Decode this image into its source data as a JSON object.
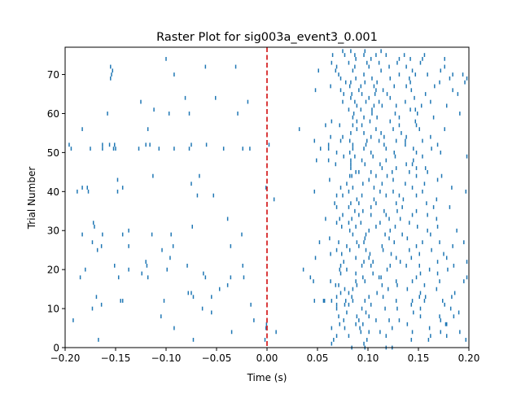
{
  "chart_data": {
    "type": "scatter",
    "marker": "vertical-tick",
    "title": "Raster Plot for sig003a_event3_0.001",
    "xlabel": "Time (s)",
    "ylabel": "Trial Number",
    "xlim": [
      -0.2,
      0.2
    ],
    "ylim": [
      0,
      77
    ],
    "xticks": [
      "−0.20",
      "−0.15",
      "−0.10",
      "−0.05",
      "0.00",
      "0.05",
      "0.10",
      "0.15",
      "0.20"
    ],
    "yticks": [
      "0",
      "10",
      "20",
      "30",
      "40",
      "50",
      "60",
      "70"
    ],
    "grid": false,
    "legend": "none",
    "colors": {
      "spikes": "#1f77b4",
      "event_line": "#d62728"
    },
    "event_line": {
      "x": 0.0,
      "style": "dashed"
    },
    "trials": [
      {
        "trial": 0,
        "spikes": [
          0.084,
          0.097,
          0.118,
          0.124
        ]
      },
      {
        "trial": 1,
        "spikes": [
          0.064,
          0.096
        ]
      },
      {
        "trial": 2,
        "spikes": [
          -0.167,
          -0.073,
          -0.002,
          0.066,
          0.099,
          0.143,
          0.16,
          0.197
        ]
      },
      {
        "trial": 3,
        "spikes": [
          0.069,
          0.081,
          0.118,
          0.162,
          0.178
        ]
      },
      {
        "trial": 4,
        "spikes": [
          -0.035,
          0.009,
          0.093,
          0.101,
          0.112,
          0.144,
          0.172,
          0.191
        ]
      },
      {
        "trial": 5,
        "spikes": [
          -0.092,
          -0.001,
          0.064,
          0.077,
          0.092,
          0.124,
          0.161
        ]
      },
      {
        "trial": 6,
        "spikes": [
          -0.0005,
          0.072,
          0.088,
          0.095,
          0.139,
          0.177,
          0.178
        ]
      },
      {
        "trial": 7,
        "spikes": [
          -0.192,
          -0.013,
          0.076,
          0.091,
          0.108,
          0.121,
          0.131,
          0.172
        ]
      },
      {
        "trial": 8,
        "spikes": [
          -0.105,
          0.071,
          0.089,
          0.101,
          0.152,
          0.171,
          0.185
        ]
      },
      {
        "trial": 9,
        "spikes": [
          -0.055,
          0.079,
          0.098,
          0.145,
          0.19
        ]
      },
      {
        "trial": 10,
        "spikes": [
          -0.173,
          -0.064,
          0.069,
          0.094,
          0.117,
          0.129,
          0.152,
          0.182
        ]
      },
      {
        "trial": 11,
        "spikes": [
          -0.164,
          -0.016,
          0.069,
          0.077,
          0.081,
          0.103,
          0.143,
          0.176
        ]
      },
      {
        "trial": 12,
        "spikes": [
          -0.145,
          -0.143,
          -0.102,
          0.047,
          0.056,
          0.057,
          0.064,
          0.078,
          0.085,
          0.097,
          0.128,
          0.144,
          0.156,
          0.174
        ]
      },
      {
        "trial": 13,
        "spikes": [
          -0.169,
          -0.055,
          -0.073,
          0.069,
          0.084,
          0.101,
          0.115,
          0.151,
          0.157,
          0.183
        ]
      },
      {
        "trial": 14,
        "spikes": [
          -0.078,
          -0.075,
          0.073,
          0.081,
          0.109,
          0.152,
          0.186
        ]
      },
      {
        "trial": 15,
        "spikes": [
          -0.047,
          0.077,
          0.085,
          0.12,
          0.139,
          0.168
        ]
      },
      {
        "trial": 16,
        "spikes": [
          -0.039,
          0.068,
          0.071,
          0.089,
          0.114,
          0.129,
          0.156
        ]
      },
      {
        "trial": 17,
        "spikes": [
          0.046,
          0.063,
          0.088,
          0.097,
          0.128,
          0.144,
          0.171,
          0.195
        ]
      },
      {
        "trial": 18,
        "spikes": [
          -0.185,
          -0.147,
          -0.118,
          -0.061,
          -0.036,
          -0.023,
          0.043,
          0.095,
          0.111,
          0.113,
          0.148,
          0.198
        ]
      },
      {
        "trial": 19,
        "spikes": [
          -0.124,
          -0.063,
          0.073,
          0.088,
          0.105,
          0.152,
          0.169
        ]
      },
      {
        "trial": 20,
        "spikes": [
          -0.18,
          -0.137,
          -0.099,
          0.036,
          0.072,
          0.079,
          0.119,
          0.161,
          0.179
        ]
      },
      {
        "trial": 21,
        "spikes": [
          -0.151,
          -0.119,
          -0.079,
          -0.024,
          0.073,
          0.094,
          0.103,
          0.122,
          0.138,
          0.151,
          0.185
        ]
      },
      {
        "trial": 22,
        "spikes": [
          -0.12,
          0.076,
          0.096,
          0.105,
          0.132,
          0.169,
          0.198
        ]
      },
      {
        "trial": 23,
        "spikes": [
          -0.096,
          0.048,
          0.088,
          0.101,
          0.128,
          0.143,
          0.178
        ]
      },
      {
        "trial": 24,
        "spikes": [
          0.063,
          0.074,
          0.102,
          0.123,
          0.151,
          0.175
        ]
      },
      {
        "trial": 25,
        "spikes": [
          -0.168,
          -0.104,
          0.069,
          0.082,
          0.098,
          0.115,
          0.141,
          0.163
        ]
      },
      {
        "trial": 26,
        "spikes": [
          -0.164,
          -0.137,
          -0.093,
          -0.036,
          0.079,
          0.091,
          0.114,
          0.148,
          0.184
        ]
      },
      {
        "trial": 27,
        "spikes": [
          -0.173,
          0.052,
          0.071,
          0.089,
          0.096,
          0.126,
          0.154,
          0.171,
          0.195
        ]
      },
      {
        "trial": 28,
        "spikes": [
          0.062,
          0.097,
          0.121,
          0.139
        ]
      },
      {
        "trial": 29,
        "spikes": [
          -0.183,
          -0.163,
          -0.143,
          -0.114,
          -0.095,
          -0.025,
          0.085,
          0.098,
          0.117,
          0.134,
          0.162
        ]
      },
      {
        "trial": 30,
        "spikes": [
          -0.137,
          0.082,
          0.101,
          0.122,
          0.159,
          0.188
        ]
      },
      {
        "trial": 31,
        "spikes": [
          -0.171,
          -0.074,
          0.074,
          0.088,
          0.108,
          0.127,
          0.149,
          0.169
        ]
      },
      {
        "trial": 32,
        "spikes": [
          -0.172,
          0.069,
          0.081,
          0.093,
          0.112,
          0.141
        ]
      },
      {
        "trial": 33,
        "spikes": [
          -0.039,
          0.058,
          0.072,
          0.084,
          0.121,
          0.132,
          0.168
        ]
      },
      {
        "trial": 34,
        "spikes": [
          0.075,
          0.091,
          0.103,
          0.118,
          0.144,
          0.159
        ]
      },
      {
        "trial": 35,
        "spikes": [
          0.087,
          0.095,
          0.116,
          0.129,
          0.148
        ]
      },
      {
        "trial": 36,
        "spikes": [
          0.069,
          0.081,
          0.103,
          0.134,
          0.165,
          0.181
        ]
      },
      {
        "trial": 37,
        "spikes": [
          0.067,
          0.083,
          0.091,
          0.108,
          0.128,
          0.158
        ]
      },
      {
        "trial": 38,
        "spikes": [
          0.007,
          0.089,
          0.106,
          0.135,
          0.168
        ]
      },
      {
        "trial": 39,
        "spikes": [
          -0.069,
          -0.053,
          0.069,
          0.075,
          0.094,
          0.118,
          0.131,
          0.148
        ]
      },
      {
        "trial": 40,
        "spikes": [
          -0.188,
          -0.177,
          -0.148,
          0.047,
          0.081,
          0.112,
          0.125,
          0.154,
          0.197
        ]
      },
      {
        "trial": 41,
        "spikes": [
          -0.183,
          -0.178,
          -0.143,
          -0.001,
          0.073,
          0.085,
          0.106,
          0.144,
          0.183
        ]
      },
      {
        "trial": 42,
        "spikes": [
          -0.075,
          0.079,
          0.095,
          0.114,
          0.137,
          0.156
        ]
      },
      {
        "trial": 43,
        "spikes": [
          -0.148,
          0.062,
          0.101,
          0.125,
          0.169
        ]
      },
      {
        "trial": 44,
        "spikes": [
          -0.113,
          -0.067,
          0.082,
          0.084,
          0.108,
          0.119,
          0.148,
          0.173
        ]
      },
      {
        "trial": 45,
        "spikes": [
          0.088,
          0.091,
          0.103,
          0.124,
          0.141,
          0.159
        ]
      },
      {
        "trial": 46,
        "spikes": [
          0.083,
          0.114,
          0.128,
          0.148,
          0.157
        ]
      },
      {
        "trial": 47,
        "spikes": [
          0.068,
          0.083,
          0.097,
          0.112,
          0.138,
          0.144
        ]
      },
      {
        "trial": 48,
        "spikes": [
          0.049,
          0.061,
          0.083,
          0.094,
          0.118,
          0.145
        ]
      },
      {
        "trial": 49,
        "spikes": [
          0.076,
          0.087,
          0.105,
          0.127,
          0.154,
          0.198
        ]
      },
      {
        "trial": 50,
        "spikes": [
          0.069,
          0.082,
          0.103,
          0.126,
          0.148,
          0.172
        ]
      },
      {
        "trial": 51,
        "spikes": [
          -0.194,
          -0.175,
          -0.163,
          -0.152,
          -0.15,
          -0.127,
          -0.107,
          -0.092,
          -0.077,
          -0.043,
          -0.024,
          -0.017,
          0.053,
          0.061,
          0.085,
          0.096,
          0.118,
          0.145,
          0.163
        ]
      },
      {
        "trial": 52,
        "spikes": [
          -0.196,
          -0.163,
          -0.156,
          -0.151,
          -0.12,
          -0.116,
          -0.075,
          -0.06,
          0.002,
          0.061,
          0.085,
          0.098,
          0.116,
          0.137,
          0.169
        ]
      },
      {
        "trial": 53,
        "spikes": [
          0.047,
          0.073,
          0.082,
          0.099,
          0.111,
          0.128,
          0.137,
          0.154
        ]
      },
      {
        "trial": 54,
        "spikes": [
          0.063,
          0.075,
          0.103,
          0.116,
          0.138,
          0.162
        ]
      },
      {
        "trial": 55,
        "spikes": [
          0.083,
          0.096,
          0.113,
          0.133
        ]
      },
      {
        "trial": 56,
        "spikes": [
          -0.183,
          -0.118,
          0.032,
          0.089,
          0.108,
          0.125,
          0.151,
          0.176
        ]
      },
      {
        "trial": 57,
        "spikes": [
          0.058,
          0.072,
          0.085,
          0.094,
          0.131,
          0.148
        ]
      },
      {
        "trial": 58,
        "spikes": [
          0.064,
          0.089,
          0.102,
          0.122,
          0.147
        ]
      },
      {
        "trial": 59,
        "spikes": [
          0.085,
          0.096,
          0.109,
          0.131,
          0.165
        ]
      },
      {
        "trial": 60,
        "spikes": [
          -0.158,
          -0.097,
          -0.077,
          -0.029,
          0.086,
          0.104,
          0.127,
          0.149,
          0.191
        ]
      },
      {
        "trial": 61,
        "spikes": [
          -0.112,
          0.081,
          0.093,
          0.104,
          0.142,
          0.147
        ]
      },
      {
        "trial": 62,
        "spikes": [
          0.089,
          0.106,
          0.114,
          0.128,
          0.153,
          0.178
        ]
      },
      {
        "trial": 63,
        "spikes": [
          -0.125,
          -0.019,
          0.075,
          0.087,
          0.098,
          0.111,
          0.137,
          0.162
        ]
      },
      {
        "trial": 64,
        "spikes": [
          -0.081,
          -0.051,
          0.083,
          0.101,
          0.122,
          0.146
        ]
      },
      {
        "trial": 65,
        "spikes": [
          0.076,
          0.084,
          0.094,
          0.107,
          0.119,
          0.157,
          0.189
        ]
      },
      {
        "trial": 66,
        "spikes": [
          0.048,
          0.073,
          0.091,
          0.108,
          0.115,
          0.143,
          0.184
        ]
      },
      {
        "trial": 67,
        "spikes": [
          0.063,
          0.082,
          0.093,
          0.106,
          0.126,
          0.138,
          0.166
        ]
      },
      {
        "trial": 68,
        "spikes": [
          0.078,
          0.083,
          0.097,
          0.109,
          0.142,
          0.171,
          0.196
        ]
      },
      {
        "trial": 69,
        "spikes": [
          -0.155,
          0.073,
          0.088,
          0.104,
          0.122,
          0.141,
          0.181,
          0.198
        ]
      },
      {
        "trial": 70,
        "spikes": [
          -0.154,
          -0.092,
          0.071,
          0.096,
          0.131,
          0.147,
          0.159,
          0.184,
          0.194
        ]
      },
      {
        "trial": 71,
        "spikes": [
          -0.153,
          0.051,
          0.068,
          0.085,
          0.113,
          0.144,
          0.172
        ]
      },
      {
        "trial": 72,
        "spikes": [
          -0.155,
          -0.061,
          -0.031,
          0.069,
          0.087,
          0.101,
          0.121,
          0.138,
          0.176
        ]
      },
      {
        "trial": 73,
        "spikes": [
          0.064,
          0.081,
          0.099,
          0.111,
          0.129,
          0.152
        ]
      },
      {
        "trial": 74,
        "spikes": [
          -0.1,
          0.131,
          0.088,
          0.103,
          0.142,
          0.154,
          0.176
        ]
      },
      {
        "trial": 75,
        "spikes": [
          0.065,
          0.077,
          0.087,
          0.096,
          0.108,
          0.118,
          0.136,
          0.156
        ]
      },
      {
        "trial": 76,
        "spikes": [
          0.075,
          0.083,
          0.097,
          0.113
        ]
      }
    ]
  }
}
